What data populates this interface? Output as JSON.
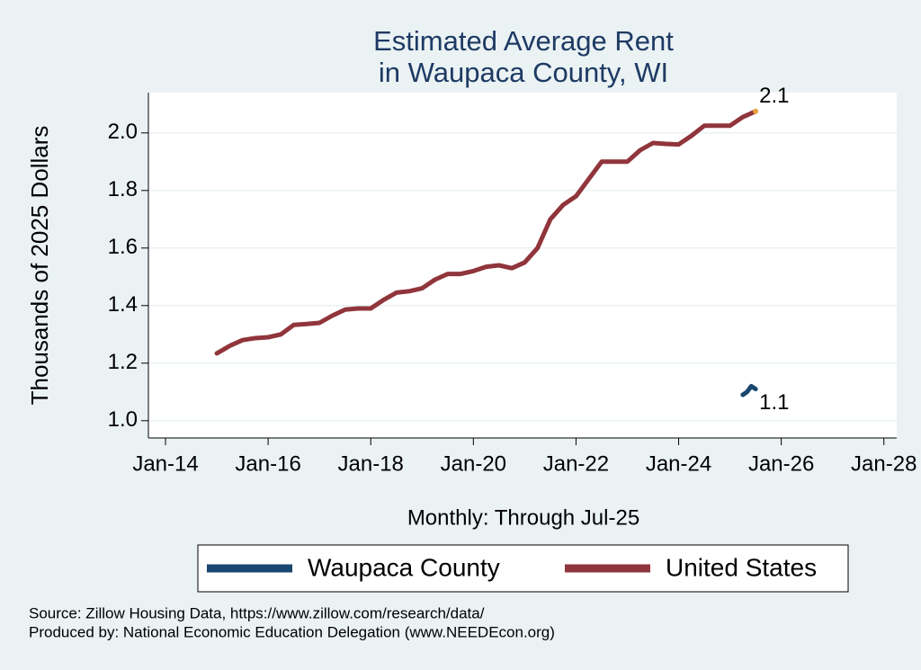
{
  "chart_data": {
    "type": "line",
    "title": [
      "Estimated Average Rent",
      "in Waupaca County, WI"
    ],
    "y_label": "Thousands of 2025 Dollars",
    "x_label": "Monthly: Through Jul-25",
    "source": [
      "Source: Zillow Housing Data, https://www.zillow.com/research/data/",
      "Produced by: National Economic Education Delegation (www.NEEDEcon.org)"
    ],
    "xlim": [
      "Sep-13",
      "Apr-28"
    ],
    "xticks": [
      "Jan-14",
      "Jan-16",
      "Jan-18",
      "Jan-20",
      "Jan-22",
      "Jan-24",
      "Jan-26",
      "Jan-28"
    ],
    "ylim": [
      0.94,
      2.14
    ],
    "yticks": [
      {
        "value": 1,
        "label": "1.0"
      },
      1.2,
      1.4,
      1.6,
      1.8,
      {
        "value": 2,
        "label": "2.0"
      }
    ],
    "grid": true,
    "series": [
      {
        "name": "Waupaca County",
        "color": "#1a476f",
        "x": [
          "Apr-25",
          "May-25",
          "Jun-25",
          "Jul-25"
        ],
        "values": [
          1.09,
          1.1,
          1.12,
          1.11
        ],
        "value_labels": [
          null,
          null,
          null,
          "1.1"
        ]
      },
      {
        "name": "United States",
        "color": "#90353b",
        "end_marker_color": "#e8a33d",
        "x": [
          "Jan-15",
          "Apr-15",
          "Jul-15",
          "Oct-15",
          "Jan-16",
          "Apr-16",
          "Jul-16",
          "Oct-16",
          "Jan-17",
          "Apr-17",
          "Jul-17",
          "Oct-17",
          "Jan-18",
          "Apr-18",
          "Jul-18",
          "Oct-18",
          "Jan-19",
          "Apr-19",
          "Jul-19",
          "Oct-19",
          "Jan-20",
          "Apr-20",
          "Jul-20",
          "Oct-20",
          "Jan-21",
          "Apr-21",
          "Jul-21",
          "Oct-21",
          "Jan-22",
          "Apr-22",
          "Jul-22",
          "Oct-22",
          "Jan-23",
          "Apr-23",
          "Jul-23",
          "Oct-23",
          "Jan-24",
          "Apr-24",
          "Jul-24",
          "Oct-24",
          "Jan-25",
          "Apr-25",
          "Jul-25"
        ],
        "values": [
          1.234,
          1.26,
          1.28,
          1.287,
          1.29,
          1.3,
          1.333,
          1.336,
          1.34,
          1.365,
          1.386,
          1.39,
          1.39,
          1.42,
          1.445,
          1.45,
          1.46,
          1.49,
          1.51,
          1.51,
          1.52,
          1.535,
          1.54,
          1.53,
          1.55,
          1.6,
          1.7,
          1.75,
          1.78,
          1.84,
          1.9,
          1.9,
          1.9,
          1.94,
          1.965,
          1.962,
          1.96,
          1.99,
          2.025,
          2.025,
          2.025,
          2.055,
          2.075
        ],
        "value_labels": [
          null,
          null,
          null,
          null,
          null,
          null,
          null,
          null,
          null,
          null,
          null,
          null,
          null,
          null,
          null,
          null,
          null,
          null,
          null,
          null,
          null,
          null,
          null,
          null,
          null,
          null,
          null,
          null,
          null,
          null,
          null,
          null,
          null,
          null,
          null,
          null,
          null,
          null,
          null,
          null,
          null,
          null,
          "2.1"
        ]
      }
    ]
  }
}
